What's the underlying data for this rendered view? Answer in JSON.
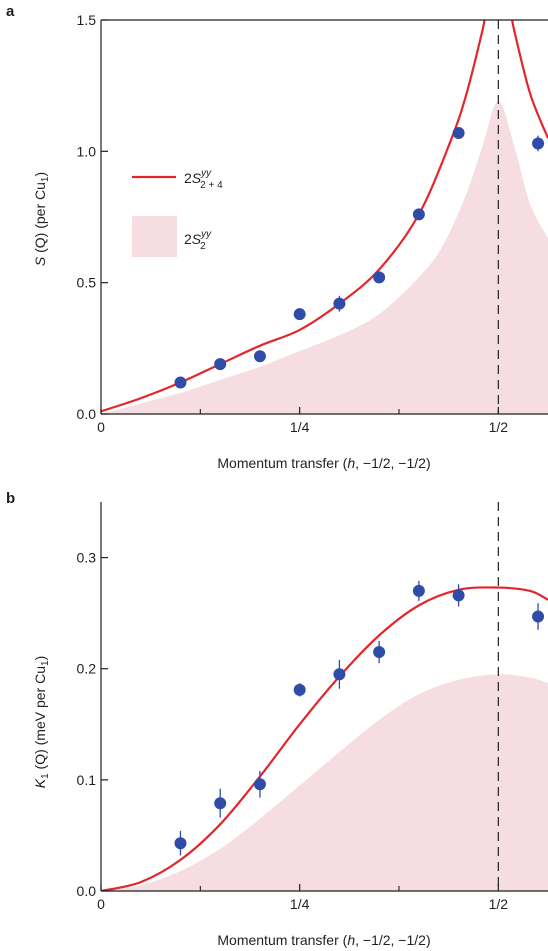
{
  "figure": {
    "colors": {
      "model_line": "#e3262c",
      "fill_area": "#f5dde2",
      "data_point": "#2f4da8",
      "axis": "#231f20",
      "dashed_line": "#231f20"
    }
  },
  "chart_data": [
    {
      "panel": "a",
      "type": "line",
      "xlabel": "Momentum transfer (h, −1/2, −1/2)",
      "ylabel": "S (Q) (per Cu1)",
      "xlim": [
        0,
        0.5625
      ],
      "ylim": [
        0,
        1.5
      ],
      "x_ticks": [
        0,
        0.25,
        0.5
      ],
      "x_tick_labels": [
        "0",
        "1/4",
        "1/2"
      ],
      "y_ticks": [
        0.0,
        0.5,
        1.0,
        1.5
      ],
      "y_tick_labels": [
        "0.0",
        "0.5",
        "1.0",
        "1.5"
      ],
      "dashed_vline_x": 0.5,
      "legend": [
        {
          "kind": "line",
          "label": "2S2+4yy"
        },
        {
          "kind": "area",
          "label": "2S2yy"
        }
      ],
      "series": [
        {
          "name": "2S2+4yy",
          "kind": "line",
          "x": [
            0,
            0.05,
            0.1,
            0.15,
            0.2,
            0.25,
            0.3,
            0.35,
            0.4,
            0.44,
            0.46,
            0.48,
            0.49,
            0.51,
            0.52,
            0.54,
            0.5625
          ],
          "y": [
            0.01,
            0.06,
            0.12,
            0.19,
            0.26,
            0.32,
            0.42,
            0.55,
            0.76,
            1.04,
            1.22,
            1.46,
            1.6,
            1.6,
            1.46,
            1.22,
            1.05
          ]
        },
        {
          "name": "2S2yy",
          "kind": "area",
          "x": [
            0,
            0.05,
            0.1,
            0.15,
            0.2,
            0.25,
            0.3,
            0.35,
            0.4,
            0.43,
            0.46,
            0.48,
            0.5,
            0.52,
            0.54,
            0.5625
          ],
          "y": [
            0.0,
            0.04,
            0.08,
            0.13,
            0.18,
            0.24,
            0.3,
            0.38,
            0.52,
            0.64,
            0.84,
            1.02,
            1.19,
            1.02,
            0.8,
            0.67
          ]
        },
        {
          "name": "data",
          "kind": "points",
          "x": [
            0.1,
            0.15,
            0.2,
            0.25,
            0.3,
            0.35,
            0.4,
            0.45,
            0.55
          ],
          "y": [
            0.12,
            0.19,
            0.22,
            0.38,
            0.42,
            0.52,
            0.76,
            1.07,
            1.03
          ],
          "err": [
            0.015,
            0.015,
            0.015,
            0.015,
            0.03,
            0.015,
            0.015,
            0.015,
            0.03
          ]
        }
      ]
    },
    {
      "panel": "b",
      "type": "line",
      "xlabel": "Momentum transfer (h, −1/2, −1/2)",
      "ylabel": "K1 (Q) (meV per Cu1)",
      "xlim": [
        0,
        0.5625
      ],
      "ylim": [
        0,
        0.35
      ],
      "x_ticks": [
        0,
        0.25,
        0.5
      ],
      "x_tick_labels": [
        "0",
        "1/4",
        "1/2"
      ],
      "y_ticks": [
        0.0,
        0.1,
        0.2,
        0.3
      ],
      "y_tick_labels": [
        "0.0",
        "0.1",
        "0.2",
        "0.3"
      ],
      "dashed_vline_x": 0.5,
      "series": [
        {
          "name": "model",
          "kind": "line",
          "x": [
            0,
            0.05,
            0.1,
            0.15,
            0.2,
            0.25,
            0.3,
            0.35,
            0.4,
            0.45,
            0.5,
            0.54,
            0.5625
          ],
          "y": [
            0.0,
            0.008,
            0.028,
            0.06,
            0.103,
            0.15,
            0.193,
            0.23,
            0.257,
            0.271,
            0.273,
            0.27,
            0.262
          ]
        },
        {
          "name": "area",
          "kind": "area",
          "x": [
            0,
            0.05,
            0.1,
            0.15,
            0.2,
            0.25,
            0.3,
            0.35,
            0.4,
            0.45,
            0.5,
            0.54,
            0.5625
          ],
          "y": [
            0.0,
            0.005,
            0.018,
            0.038,
            0.065,
            0.095,
            0.125,
            0.154,
            0.177,
            0.19,
            0.195,
            0.192,
            0.187
          ]
        },
        {
          "name": "data",
          "kind": "points",
          "x": [
            0.1,
            0.15,
            0.2,
            0.25,
            0.3,
            0.35,
            0.4,
            0.45,
            0.55
          ],
          "y": [
            0.043,
            0.079,
            0.096,
            0.181,
            0.195,
            0.215,
            0.27,
            0.266,
            0.247
          ],
          "err": [
            0.011,
            0.013,
            0.012,
            0.006,
            0.013,
            0.01,
            0.009,
            0.01,
            0.012
          ]
        }
      ]
    }
  ]
}
